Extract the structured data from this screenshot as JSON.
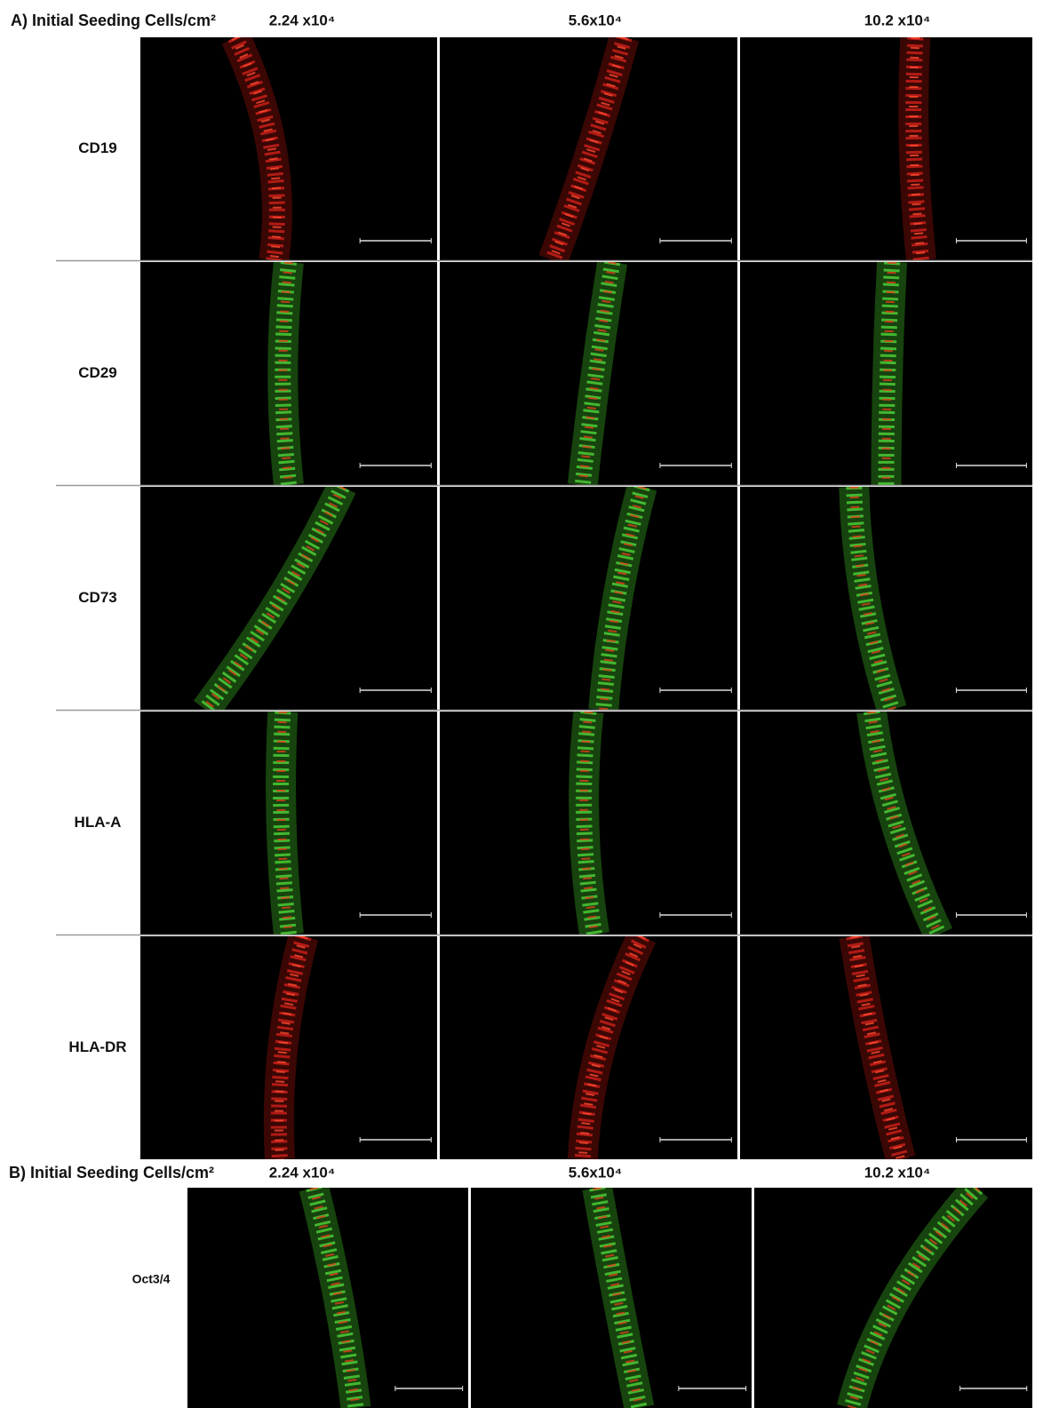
{
  "panel_a": {
    "title": "A) Initial Seeding Cells/cm²",
    "columns": [
      "2.24 x10⁴",
      "5.6x10⁴",
      "10.2 x10⁴"
    ],
    "rows": [
      "CD19",
      "CD29",
      "CD73",
      "HLA-A",
      "HLA-DR"
    ]
  },
  "panel_b": {
    "title": "B) Initial Seeding Cells/cm²",
    "columns": [
      "2.24 x10⁴",
      "5.6x10⁴",
      "10.2 x10⁴"
    ],
    "rows": [
      "Oct3/4"
    ]
  }
}
